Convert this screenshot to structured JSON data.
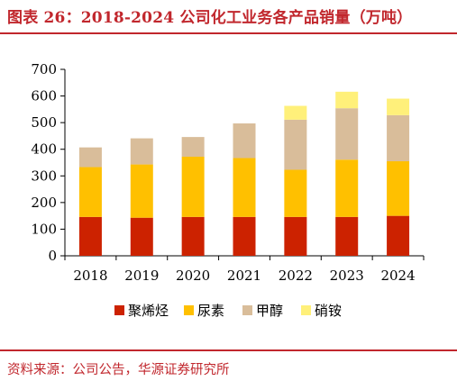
{
  "header": {
    "title": "图表 26：2018-2024 公司化工业务各产品销量（万吨）"
  },
  "footer": {
    "source": "资料来源：公司公告，华源证券研究所"
  },
  "chart_data": {
    "type": "bar",
    "stacked": true,
    "categories": [
      "2018",
      "2019",
      "2020",
      "2021",
      "2022",
      "2023",
      "2024"
    ],
    "series": [
      {
        "name": "聚烯烃",
        "color": "#cc2200",
        "values": [
          146,
          143,
          146,
          146,
          146,
          146,
          150
        ]
      },
      {
        "name": "尿素",
        "color": "#ffc000",
        "values": [
          187,
          200,
          226,
          221,
          177,
          215,
          205
        ]
      },
      {
        "name": "甲醇",
        "color": "#d9bd9a",
        "values": [
          74,
          98,
          74,
          130,
          188,
          193,
          173
        ]
      },
      {
        "name": "硝铵",
        "color": "#fff07a",
        "values": [
          0,
          0,
          0,
          0,
          52,
          62,
          62
        ]
      }
    ],
    "ylim": [
      0,
      700
    ],
    "yticks": [
      0,
      100,
      200,
      300,
      400,
      500,
      600,
      700
    ],
    "legend_position": "bottom",
    "grid": false
  }
}
